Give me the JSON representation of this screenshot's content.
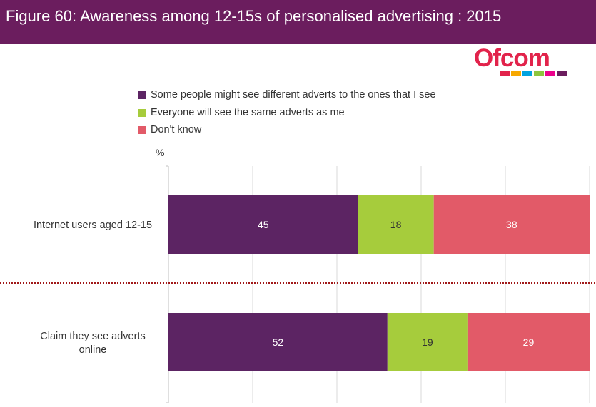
{
  "title": "Figure 60: Awareness among 12-15s of personalised advertising : 2015",
  "logo": {
    "text": "Ofcom",
    "strip_colors": [
      "#e2234b",
      "#f7a800",
      "#00a3e0",
      "#8dc63f",
      "#ec008c",
      "#6b1d5e"
    ]
  },
  "colors": {
    "header": "#6b1d5e",
    "divider": "#a01919"
  },
  "chart_data": {
    "type": "bar",
    "orientation": "horizontal",
    "stacked": true,
    "title": "Figure 60: Awareness among 12-15s of personalised advertising : 2015",
    "ylabel": "%",
    "xlim": [
      0,
      100
    ],
    "grid": true,
    "legend_position": "top",
    "categories": [
      "Internet users aged 12-15",
      "Claim they see adverts online"
    ],
    "series": [
      {
        "name": "Some people might see different adverts to the ones that I see",
        "color": "#5c2463",
        "values": [
          45,
          52
        ]
      },
      {
        "name": "Everyone will see the same adverts as me",
        "color": "#a6cc3c",
        "values": [
          18,
          19
        ]
      },
      {
        "name": "Don't know",
        "color": "#e25a68",
        "values": [
          38,
          29
        ]
      }
    ]
  }
}
